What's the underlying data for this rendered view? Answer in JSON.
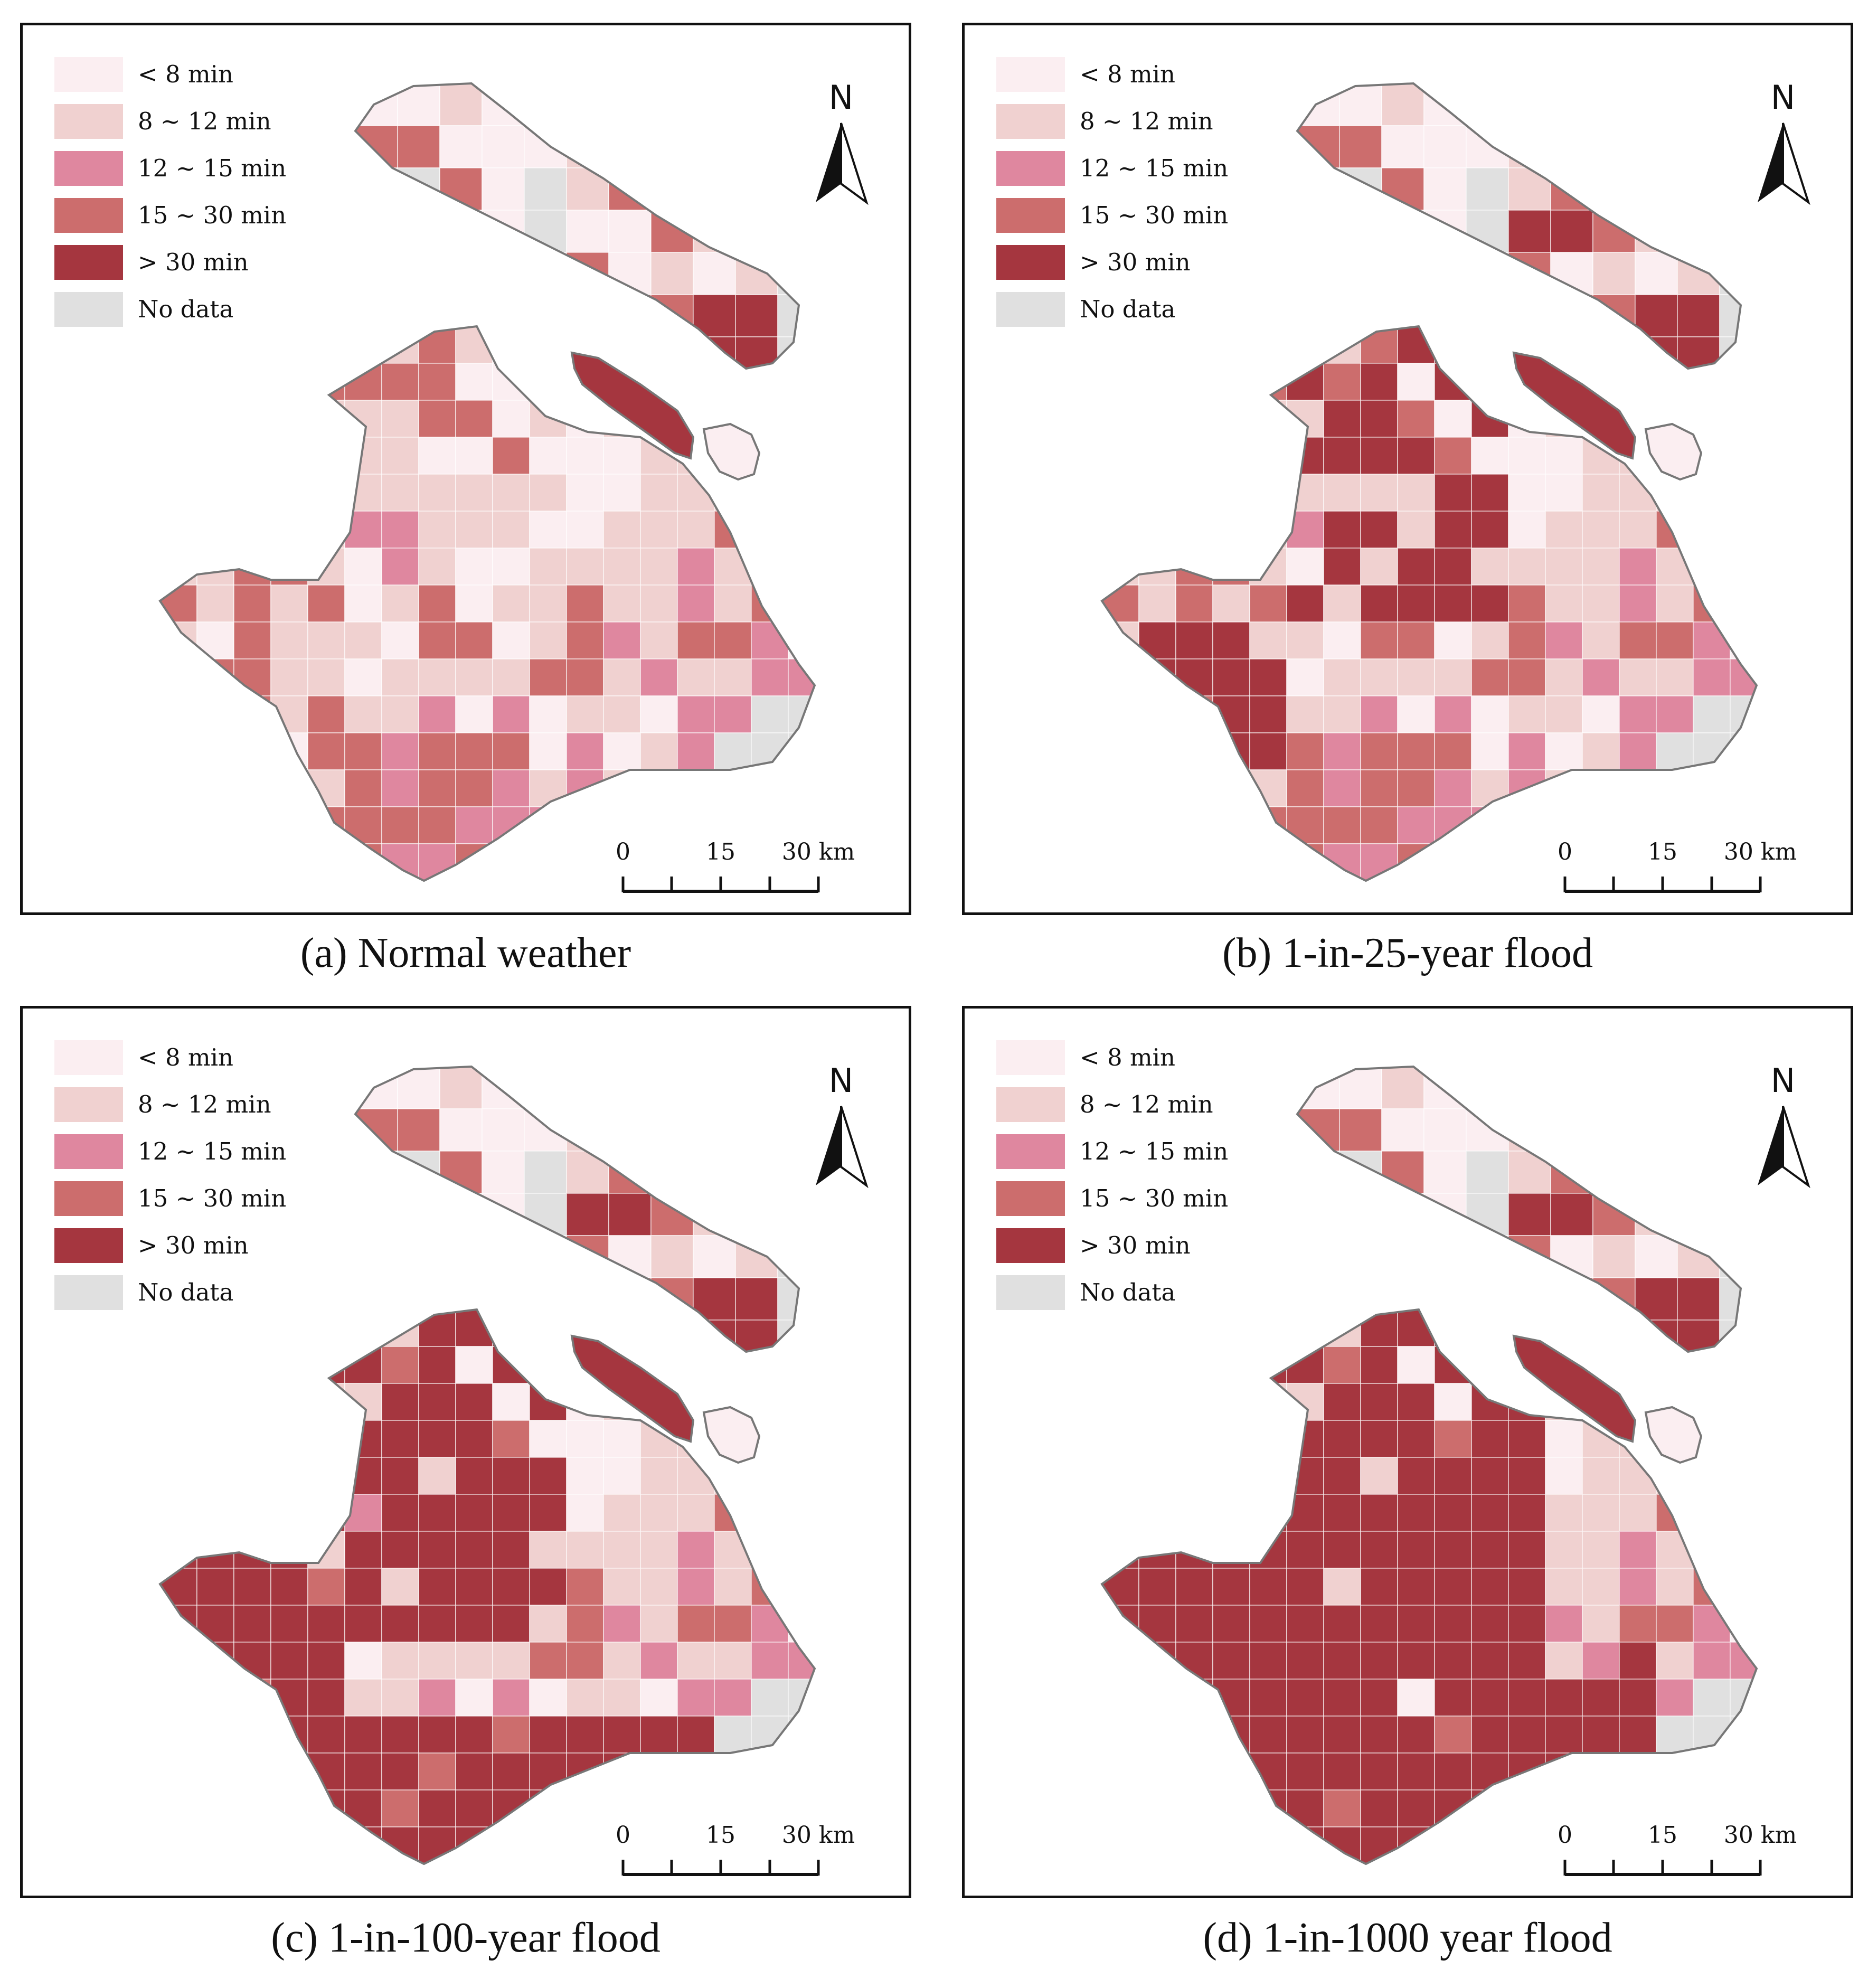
{
  "legend": {
    "items": [
      {
        "label": "< 8 min",
        "color": "#fbeef1"
      },
      {
        "label": "8 ~ 12 min",
        "color": "#f0d1d0"
      },
      {
        "label": "12 ~ 15 min",
        "color": "#df879f"
      },
      {
        "label": "15 ~ 30 min",
        "color": "#cc6d6d"
      },
      {
        "label": "> 30 min",
        "color": "#a5363f"
      },
      {
        "label": "No data",
        "color": "#e0e0e0"
      }
    ]
  },
  "north_label": "N",
  "scale": {
    "ticks": [
      "0",
      "15",
      "30 km"
    ]
  },
  "panels": [
    {
      "caption": "(a) Normal weather",
      "severity": 0
    },
    {
      "caption": "(b) 1-in-25-year flood",
      "severity": 1
    },
    {
      "caption": "(c) 1-in-100-year flood",
      "severity": 2
    },
    {
      "caption": "(d) 1-in-1000 year flood",
      "severity": 3
    }
  ],
  "colors": {
    "border": "#777777",
    "frame": "#111111"
  }
}
